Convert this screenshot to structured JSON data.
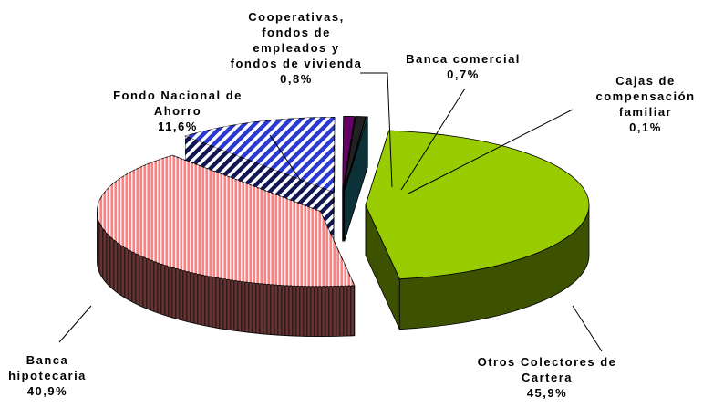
{
  "chart_data": {
    "type": "pie",
    "categories": [
      "Otros Colectores de Cartera",
      "Banca hipotecaria",
      "Fondo Nacional de Ahorro",
      "Cooperativas, fondos de empleados y fondos de vivienda",
      "Banca comercial",
      "Cajas de compensación familiar"
    ],
    "values": [
      45.9,
      40.9,
      11.6,
      0.8,
      0.7,
      0.1
    ],
    "value_labels": [
      "45,9%",
      "40,9%",
      "11,6%",
      "0,8%",
      "0,7%",
      "0,1%"
    ],
    "colors": [
      "#99cc00",
      "#ff8080",
      "#2a3ad0",
      "#660066",
      "#222222",
      "#1f7a8c"
    ]
  }
}
